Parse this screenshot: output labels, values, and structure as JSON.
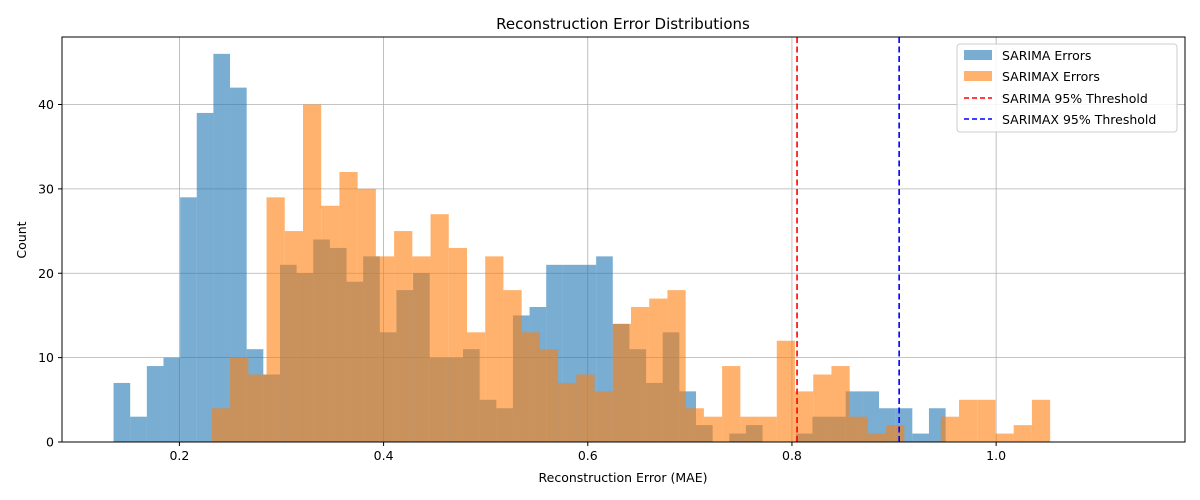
{
  "chart_data": {
    "type": "histogram",
    "title": "Reconstruction Error Distributions",
    "xlabel": "Reconstruction Error (MAE)",
    "ylabel": "Count",
    "xlim": [
      0.085,
      1.185
    ],
    "ylim": [
      0,
      48
    ],
    "xticks": [
      0.2,
      0.4,
      0.6,
      0.8,
      1.0
    ],
    "xtick_labels": [
      "0.2",
      "0.4",
      "0.6",
      "0.8",
      "1.0"
    ],
    "yticks": [
      0,
      10,
      20,
      30,
      40
    ],
    "ytick_labels": [
      "0",
      "10",
      "20",
      "30",
      "40"
    ],
    "grid": true,
    "legend_position": "top-right",
    "series": [
      {
        "name": "SARIMA Errors",
        "color": "#1f77b4",
        "opacity": 0.6,
        "bin_start": 0.1355,
        "bin_width": 0.0163,
        "counts": [
          7,
          3,
          9,
          10,
          29,
          39,
          46,
          42,
          11,
          8,
          21,
          20,
          24,
          23,
          19,
          22,
          13,
          18,
          20,
          10,
          10,
          11,
          5,
          4,
          15,
          16,
          21,
          21,
          21,
          22,
          14,
          11,
          7,
          13,
          6,
          2,
          0,
          1,
          2,
          0,
          0,
          1,
          3,
          3,
          6,
          6,
          4,
          4,
          1,
          4
        ]
      },
      {
        "name": "SARIMAX Errors",
        "color": "#ff7f0e",
        "opacity": 0.6,
        "bin_start": 0.2318,
        "bin_width": 0.01785,
        "counts": [
          4,
          10,
          8,
          29,
          25,
          40,
          28,
          32,
          30,
          22,
          25,
          22,
          27,
          23,
          13,
          22,
          18,
          13,
          11,
          7,
          8,
          6,
          14,
          16,
          17,
          18,
          4,
          3,
          9,
          3,
          3,
          12,
          6,
          8,
          9,
          3,
          1,
          2,
          0,
          0,
          3,
          5,
          5,
          1,
          2,
          5
        ]
      }
    ],
    "thresholds": [
      {
        "name": "SARIMA 95% Threshold",
        "value": 0.805,
        "color": "#ff0000"
      },
      {
        "name": "SARIMAX 95% Threshold",
        "value": 0.905,
        "color": "#0000ff"
      }
    ]
  }
}
